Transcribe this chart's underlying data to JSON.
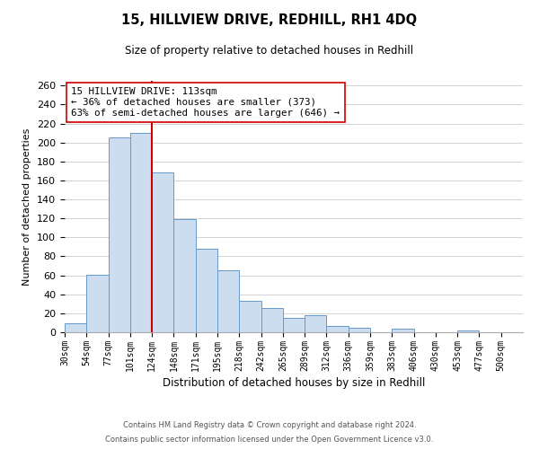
{
  "title": "15, HILLVIEW DRIVE, REDHILL, RH1 4DQ",
  "subtitle": "Size of property relative to detached houses in Redhill",
  "xlabel": "Distribution of detached houses by size in Redhill",
  "ylabel": "Number of detached properties",
  "bin_labels": [
    "30sqm",
    "54sqm",
    "77sqm",
    "101sqm",
    "124sqm",
    "148sqm",
    "171sqm",
    "195sqm",
    "218sqm",
    "242sqm",
    "265sqm",
    "289sqm",
    "312sqm",
    "336sqm",
    "359sqm",
    "383sqm",
    "406sqm",
    "430sqm",
    "453sqm",
    "477sqm",
    "500sqm"
  ],
  "bar_values": [
    9,
    61,
    205,
    210,
    168,
    119,
    88,
    65,
    33,
    26,
    15,
    18,
    7,
    5,
    0,
    4,
    0,
    0,
    2,
    0,
    0
  ],
  "bar_color": "#ccddf0",
  "bar_edge_color": "#6699cc",
  "vline_x_index": 4,
  "vline_color": "#cc0000",
  "annotation_text": "15 HILLVIEW DRIVE: 113sqm\n← 36% of detached houses are smaller (373)\n63% of semi-detached houses are larger (646) →",
  "annotation_box_edge_color": "#cc0000",
  "annotation_box_face_color": "#ffffff",
  "ylim": [
    0,
    265
  ],
  "yticks": [
    0,
    20,
    40,
    60,
    80,
    100,
    120,
    140,
    160,
    180,
    200,
    220,
    240,
    260
  ],
  "footer_line1": "Contains HM Land Registry data © Crown copyright and database right 2024.",
  "footer_line2": "Contains public sector information licensed under the Open Government Licence v3.0.",
  "background_color": "#ffffff",
  "grid_color": "#cccccc"
}
